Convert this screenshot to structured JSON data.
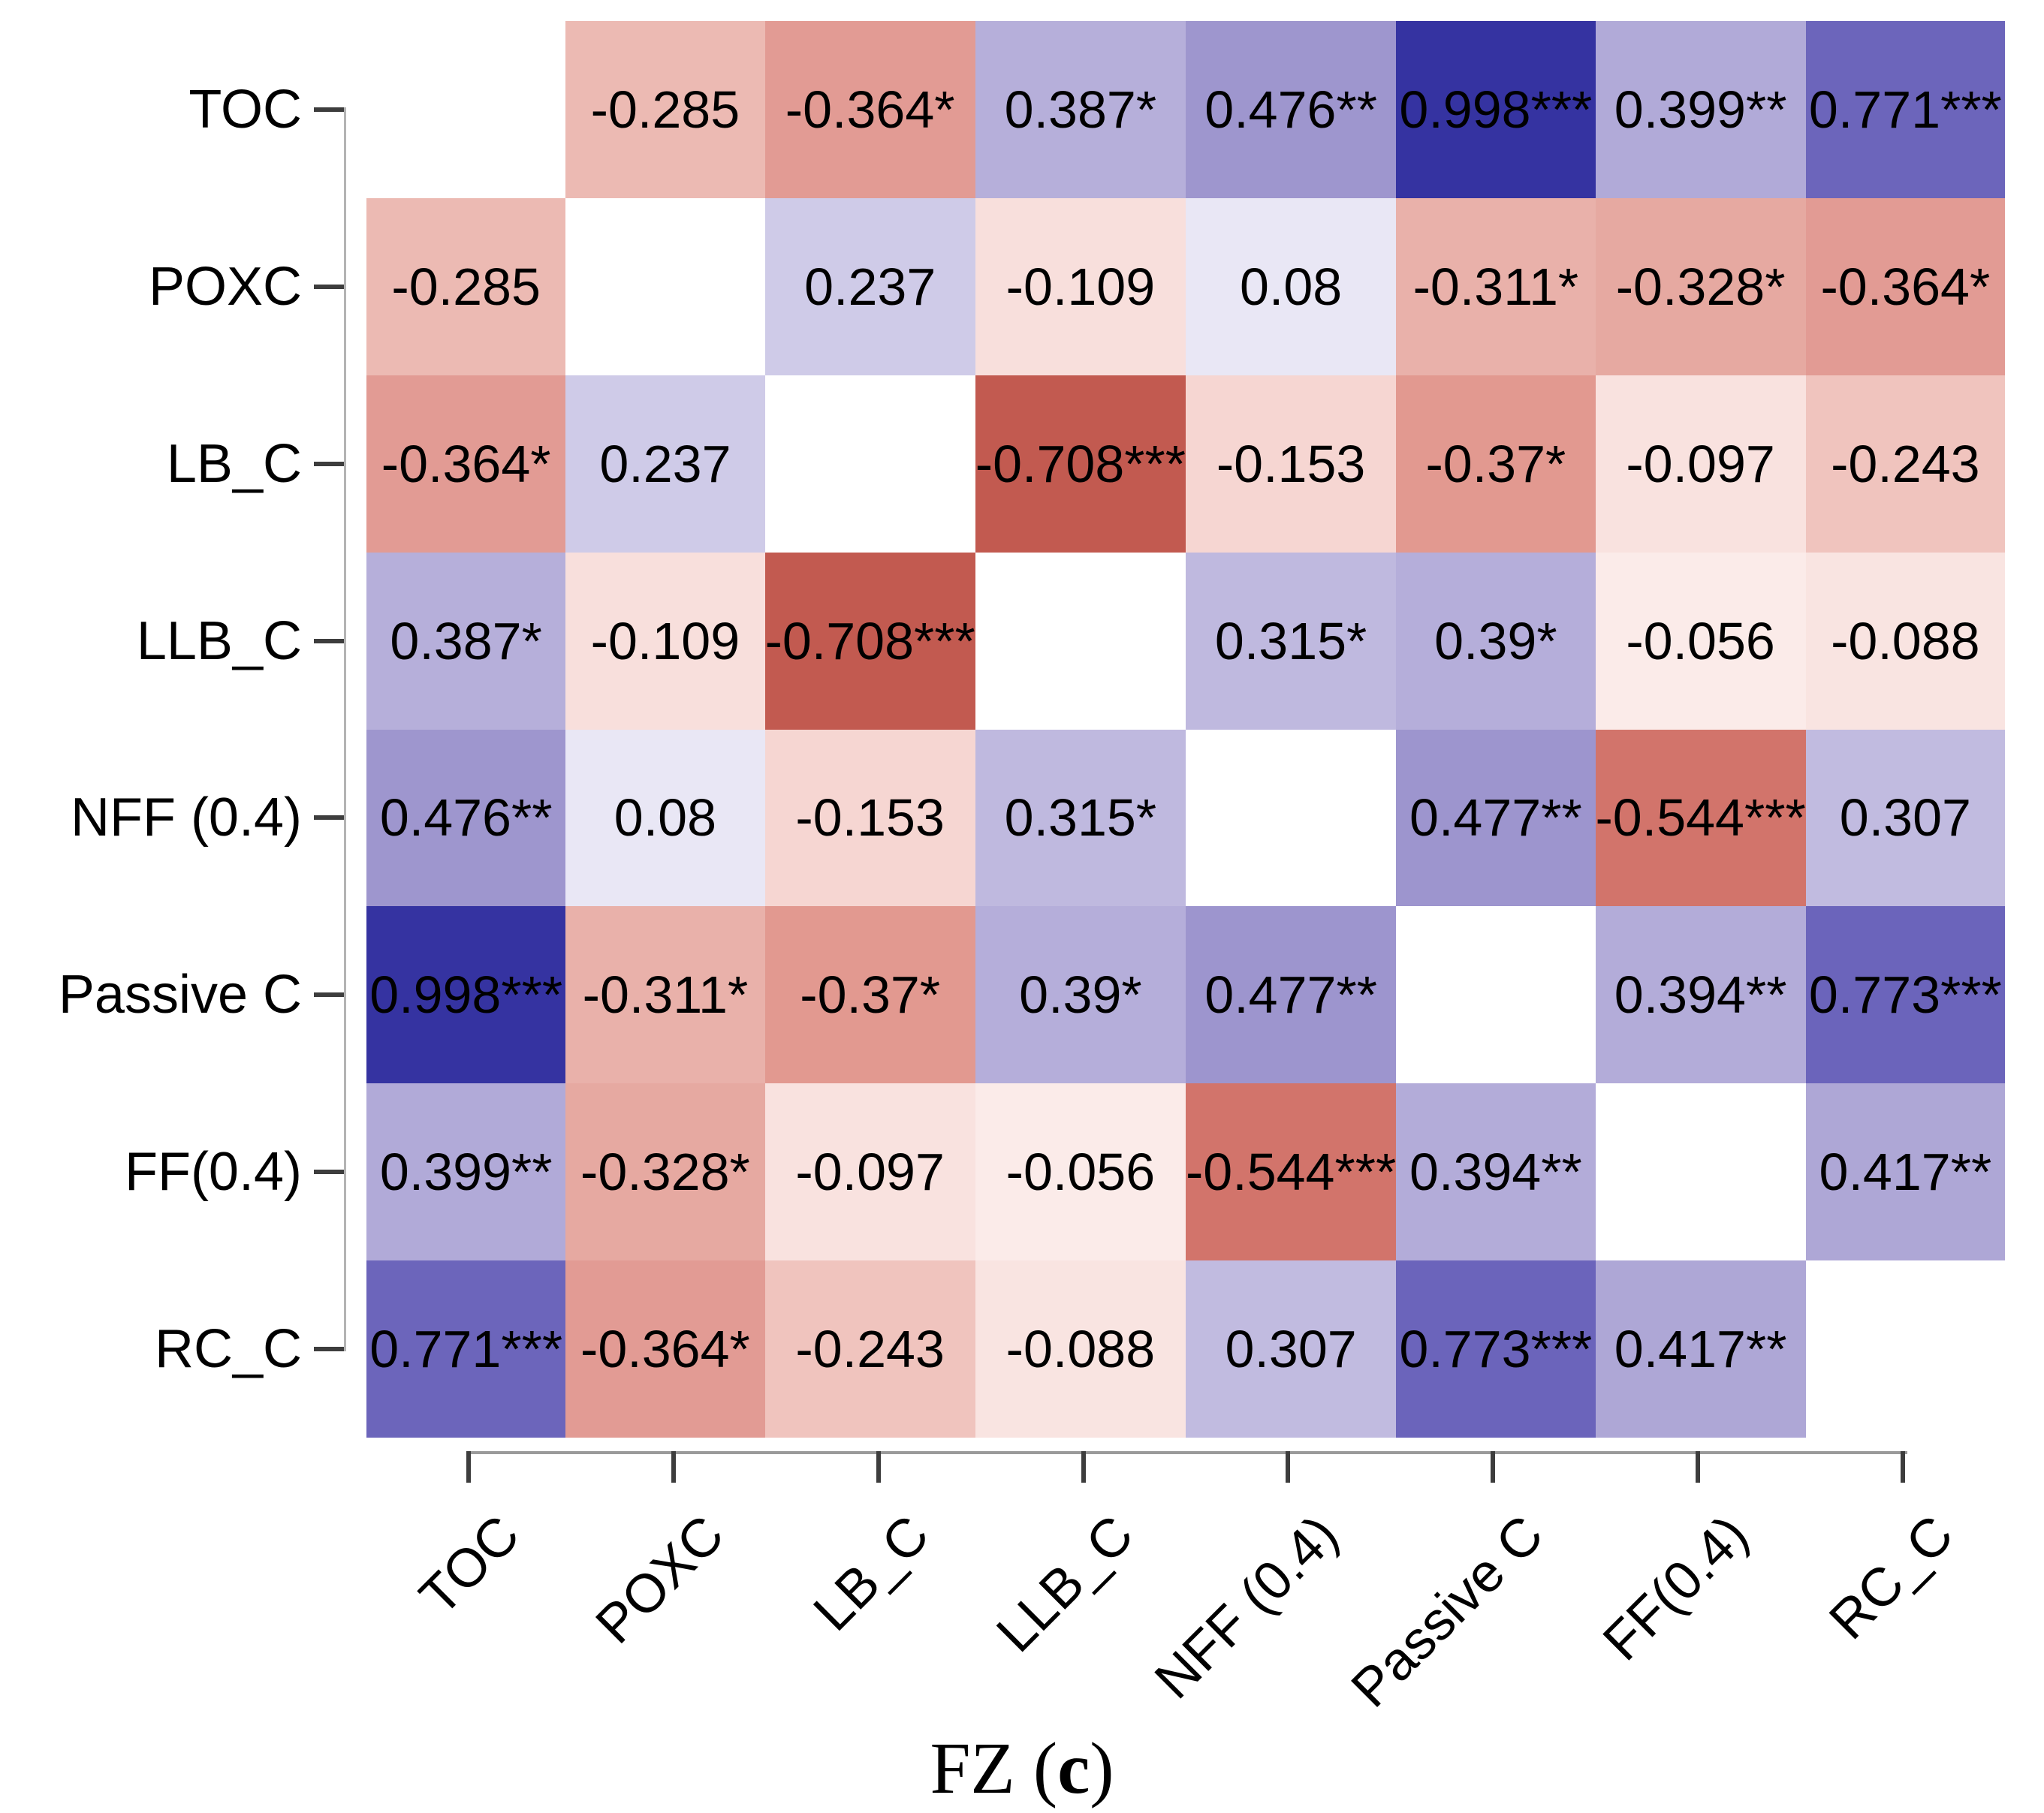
{
  "caption": {
    "full": "FZ (c)",
    "prefix": "FZ (",
    "bold": "c",
    "suffix": ")"
  },
  "chart_data": {
    "type": "heatmap",
    "title": "FZ (c)",
    "description_visible": "correlation matrix with significance stars; diagonal blank; blue = positive, red = negative",
    "variables": [
      "TOC",
      "POXC",
      "LB_C",
      "LLB_C",
      "NFF (0.4)",
      "Passive C",
      "FF(0.4)",
      "RC_C"
    ],
    "cell_labels": [
      [
        "",
        "-0.285",
        "-0.364*",
        "0.387*",
        "0.476**",
        "0.998***",
        "0.399**",
        "0.771***"
      ],
      [
        "-0.285",
        "",
        "0.237",
        "-0.109",
        "0.08",
        "-0.311*",
        "-0.328*",
        "-0.364*"
      ],
      [
        "-0.364*",
        "0.237",
        "",
        "-0.708***",
        "-0.153",
        "-0.37*",
        "-0.097",
        "-0.243"
      ],
      [
        "0.387*",
        "-0.109",
        "-0.708***",
        "",
        "0.315*",
        "0.39*",
        "-0.056",
        "-0.088"
      ],
      [
        "0.476**",
        "0.08",
        "-0.153",
        "0.315*",
        "",
        "0.477**",
        "-0.544***",
        "0.307"
      ],
      [
        "0.998***",
        "-0.311*",
        "-0.37*",
        "0.39*",
        "0.477**",
        "",
        "0.394**",
        "0.773***"
      ],
      [
        "0.399**",
        "-0.328*",
        "-0.097",
        "-0.056",
        "-0.544***",
        "0.394**",
        "",
        "0.417**"
      ],
      [
        "0.771***",
        "-0.364*",
        "-0.243",
        "-0.088",
        "0.307",
        "0.773***",
        "0.417**",
        ""
      ]
    ],
    "values": [
      [
        null,
        -0.285,
        -0.364,
        0.387,
        0.476,
        0.998,
        0.399,
        0.771
      ],
      [
        -0.285,
        null,
        0.237,
        -0.109,
        0.08,
        -0.311,
        -0.328,
        -0.364
      ],
      [
        -0.364,
        0.237,
        null,
        -0.708,
        -0.153,
        -0.37,
        -0.097,
        -0.243
      ],
      [
        0.387,
        -0.109,
        -0.708,
        null,
        0.315,
        0.39,
        -0.056,
        -0.088
      ],
      [
        0.476,
        0.08,
        -0.153,
        0.315,
        null,
        0.477,
        -0.544,
        0.307
      ],
      [
        0.998,
        -0.311,
        -0.37,
        0.39,
        0.477,
        null,
        0.394,
        0.773
      ],
      [
        0.399,
        -0.328,
        -0.097,
        -0.056,
        -0.544,
        0.394,
        null,
        0.417
      ],
      [
        0.771,
        -0.364,
        -0.243,
        -0.088,
        0.307,
        0.773,
        0.417,
        null
      ]
    ],
    "value_colors": {
      "0.998": "#3533a1",
      "0.773": "#6b64bb",
      "0.771": "#6c65bb",
      "0.477": "#9d95ce",
      "0.476": "#9e96ce",
      "0.417": "#aea7d6",
      "0.399": "#b1aad8",
      "0.394": "#b3acd9",
      "0.39": "#b5aeda",
      "0.387": "#b6afda",
      "0.315": "#bfb9df",
      "0.307": "#c1bbe0",
      "0.237": "#cfcbe8",
      "0.08": "#e9e7f5",
      "-0.056": "#fbebe9",
      "-0.088": "#f9e4e1",
      "-0.097": "#f9e2df",
      "-0.109": "#f8dfdc",
      "-0.153": "#f6d6d2",
      "-0.243": "#f0c4be",
      "-0.285": "#ecbab3",
      "-0.311": "#e9b1aa",
      "-0.328": "#e6a9a1",
      "-0.364": "#e29b94",
      "-0.37": "#e29990",
      "-0.544": "#d2746b",
      "-0.708": "#c25a50"
    },
    "diagonal_color": "#ffffff",
    "axis": {
      "tick_color": "#3d3d3d",
      "line_color": "#9a9a9a",
      "x_label_rotation_deg": 45,
      "grid_lines": false,
      "legend": "none visible"
    }
  }
}
